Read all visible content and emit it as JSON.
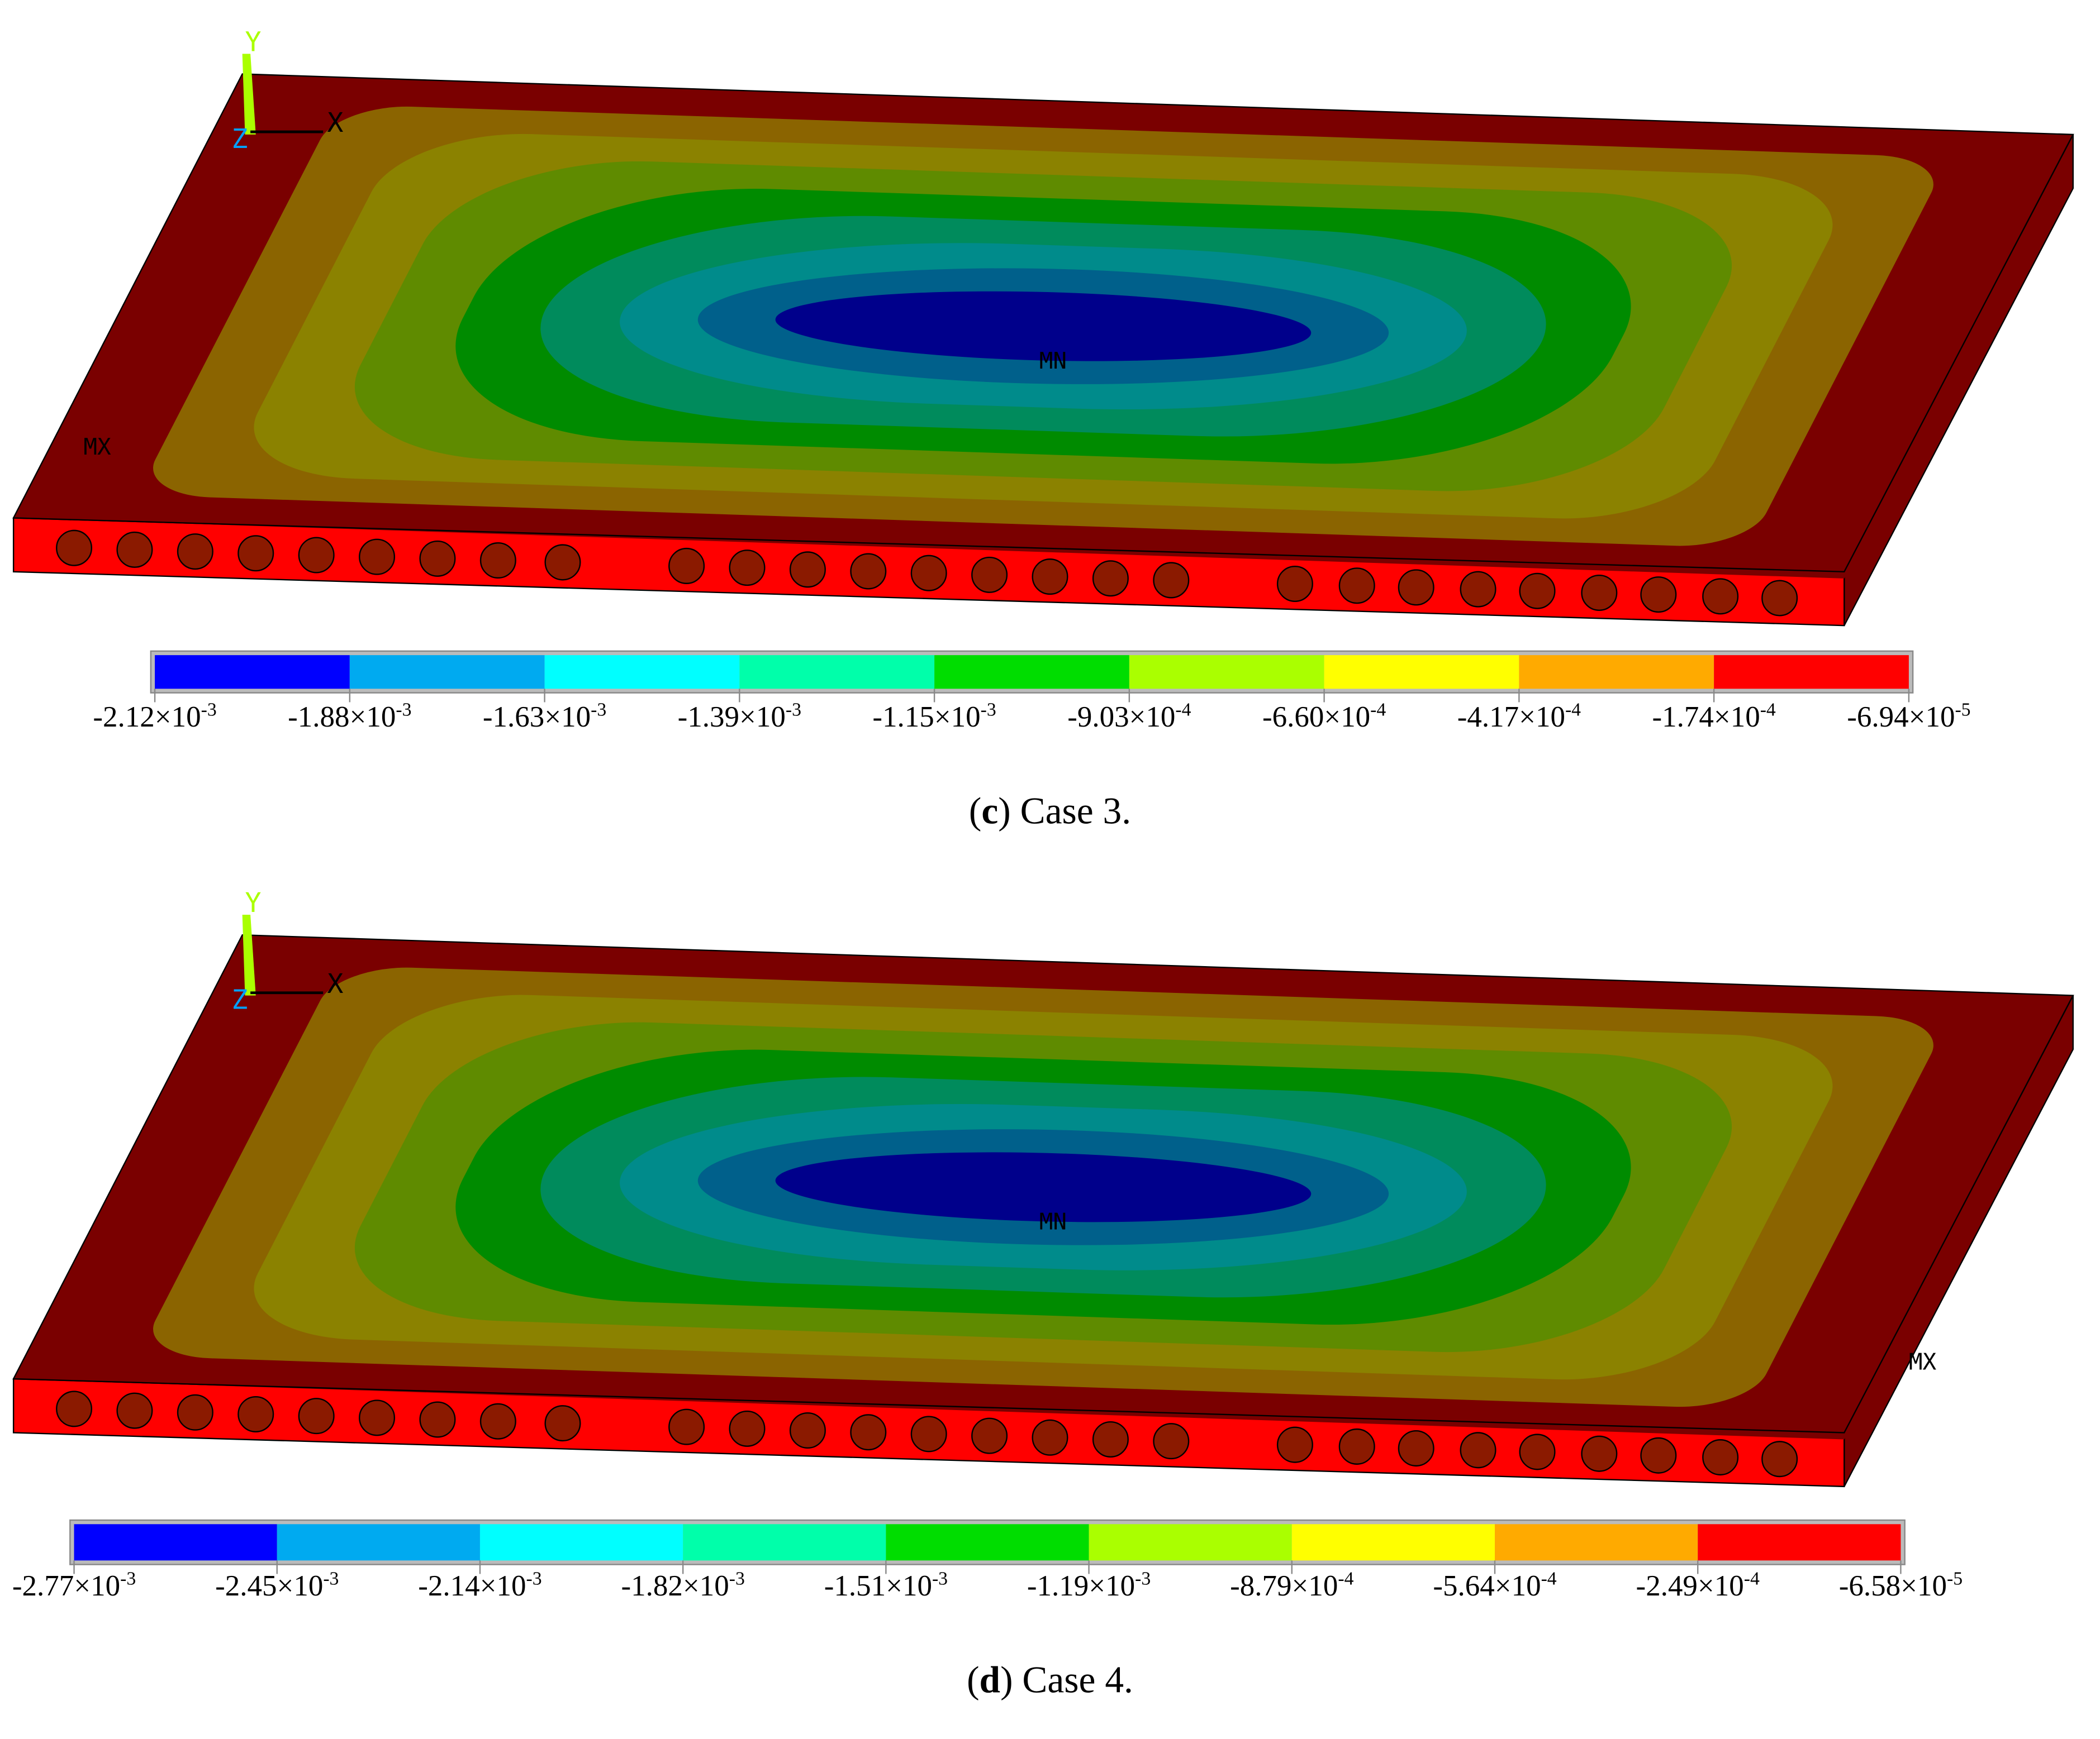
{
  "panels": [
    {
      "axis": {
        "y": "Y",
        "x": "X",
        "z": "Z"
      },
      "min_marker": "MN",
      "max_marker": "MX",
      "colorbar_colors": [
        "#0000ff",
        "#00aaf0",
        "#00ffff",
        "#00ffaa",
        "#00dd00",
        "#aaff00",
        "#ffff00",
        "#ffaa00",
        "#ff0000"
      ],
      "labels": [
        {
          "text": "-2.12×10",
          "sup": "-3"
        },
        {
          "text": "-1.88×10",
          "sup": "-3"
        },
        {
          "text": "-1.63×10",
          "sup": "-3"
        },
        {
          "text": "-1.39×10",
          "sup": "-3"
        },
        {
          "text": "-1.15×10",
          "sup": "-3"
        },
        {
          "text": "-9.03×10",
          "sup": "-4"
        },
        {
          "text": "-6.60×10",
          "sup": "-4"
        },
        {
          "text": "-4.17×10",
          "sup": "-4"
        },
        {
          "text": "-1.74×10",
          "sup": "-4"
        },
        {
          "text": "-6.94×10",
          "sup": "-5"
        }
      ],
      "caption": {
        "open": "(",
        "letter": "c",
        "rest": ") Case 3."
      }
    },
    {
      "axis": {
        "y": "Y",
        "x": "X",
        "z": "Z"
      },
      "min_marker": "MN",
      "max_marker": "MX",
      "colorbar_colors": [
        "#0000ff",
        "#00aaf0",
        "#00ffff",
        "#00ffaa",
        "#00dd00",
        "#aaff00",
        "#ffff00",
        "#ffaa00",
        "#ff0000"
      ],
      "labels": [
        {
          "text": "-2.77×10",
          "sup": "-3"
        },
        {
          "text": "-2.45×10",
          "sup": "-3"
        },
        {
          "text": "-2.14×10",
          "sup": "-3"
        },
        {
          "text": "-1.82×10",
          "sup": "-3"
        },
        {
          "text": "-1.51×10",
          "sup": "-3"
        },
        {
          "text": "-1.19×10",
          "sup": "-3"
        },
        {
          "text": "-8.79×10",
          "sup": "-4"
        },
        {
          "text": "-5.64×10",
          "sup": "-4"
        },
        {
          "text": "-2.49×10",
          "sup": "-4"
        },
        {
          "text": "-6.58×10",
          "sup": "-5"
        }
      ],
      "caption": {
        "open": "(",
        "letter": "d",
        "rest": ") Case 4."
      }
    }
  ]
}
